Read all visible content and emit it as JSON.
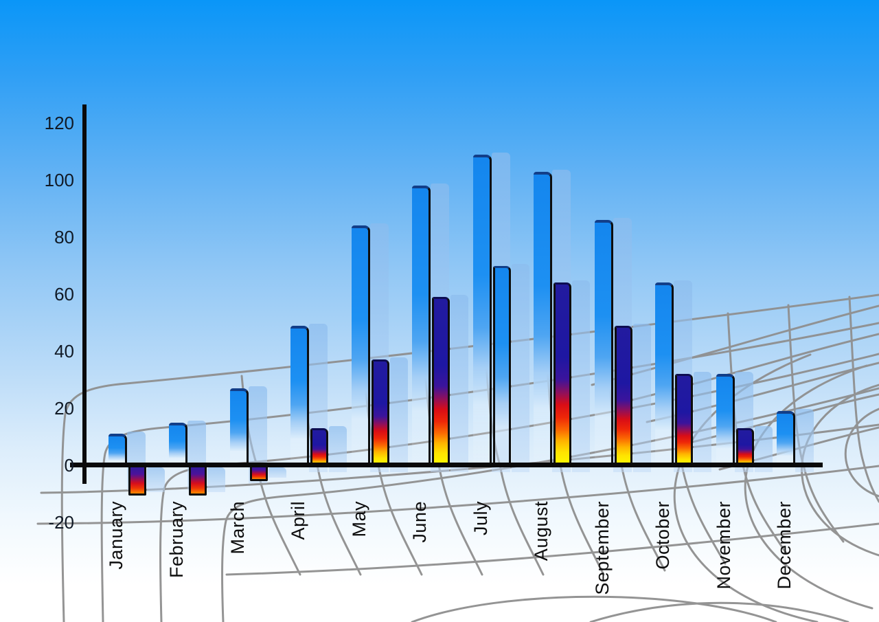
{
  "chart_data": {
    "type": "bar",
    "title": "",
    "categories": [
      "January",
      "February",
      "March",
      "April",
      "May",
      "June",
      "July",
      "August",
      "September",
      "October",
      "November",
      "December"
    ],
    "series": [
      {
        "name": "primary-sky-blue-bars",
        "values": [
          11,
          15,
          27,
          49,
          84,
          98,
          109,
          103,
          86,
          64,
          32,
          19
        ]
      },
      {
        "name": "secondary-flame-bars",
        "values": [
          -10,
          -10,
          -5,
          13,
          37,
          59,
          70,
          64,
          49,
          32,
          13,
          null
        ]
      }
    ],
    "secondary_styles": [
      "flame",
      "flame",
      "flame",
      "flame",
      "flame",
      "flame",
      "sky",
      "flame",
      "flame",
      "flame",
      "flame",
      null
    ],
    "xlabel": "",
    "ylabel": "",
    "ylim": [
      -20,
      120
    ],
    "yticks": [
      120,
      100,
      80,
      60,
      40,
      20,
      0,
      -20
    ],
    "legend": "none",
    "grid": "decorative gray perspective mesh behind bars",
    "notes": "Each bar casts a pale translucent copy offset to the right; January–March secondary bars are negative and hang below the axis; July secondary bar is sky-blue styled; December has no secondary bar."
  },
  "colors": {
    "sky_top": "#0a96f8",
    "sky_bottom": "#ffffff",
    "bar_blue": "#1d90f2",
    "bar_blue_cap": "#123e88",
    "flame_navy": "#1e17a2",
    "flame_red": "#ee0d0d",
    "flame_yellow": "#fdfd00",
    "shadow_bar": "#a8ccee",
    "grid_gray": "#8f8f8f",
    "axis_black": "#0a0a0a",
    "label_black": "#0d0d0d"
  }
}
